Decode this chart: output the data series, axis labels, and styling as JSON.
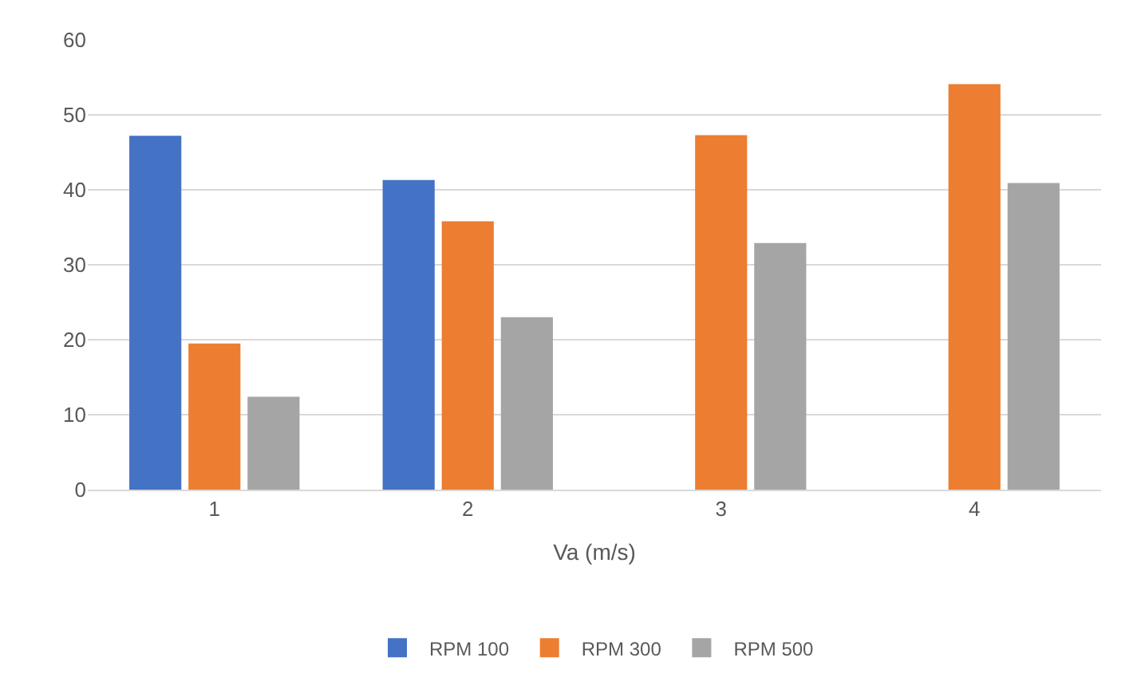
{
  "chart_data": {
    "type": "bar",
    "xlabel": "Va (m/s)",
    "categories": [
      "1",
      "2",
      "3",
      "4"
    ],
    "series": [
      {
        "name": "RPM 100",
        "color": "#4472c4",
        "values": [
          47.2,
          41.3,
          null,
          null
        ]
      },
      {
        "name": "RPM 300",
        "color": "#ed7d31",
        "values": [
          19.5,
          35.8,
          47.3,
          54.1
        ]
      },
      {
        "name": "RPM 500",
        "color": "#a5a5a5",
        "values": [
          12.4,
          23.0,
          32.9,
          40.9
        ]
      }
    ],
    "ylim": [
      0,
      60
    ],
    "yticks": [
      0,
      10,
      20,
      30,
      40,
      50,
      60
    ],
    "grid": "y",
    "legend": "bottom"
  }
}
